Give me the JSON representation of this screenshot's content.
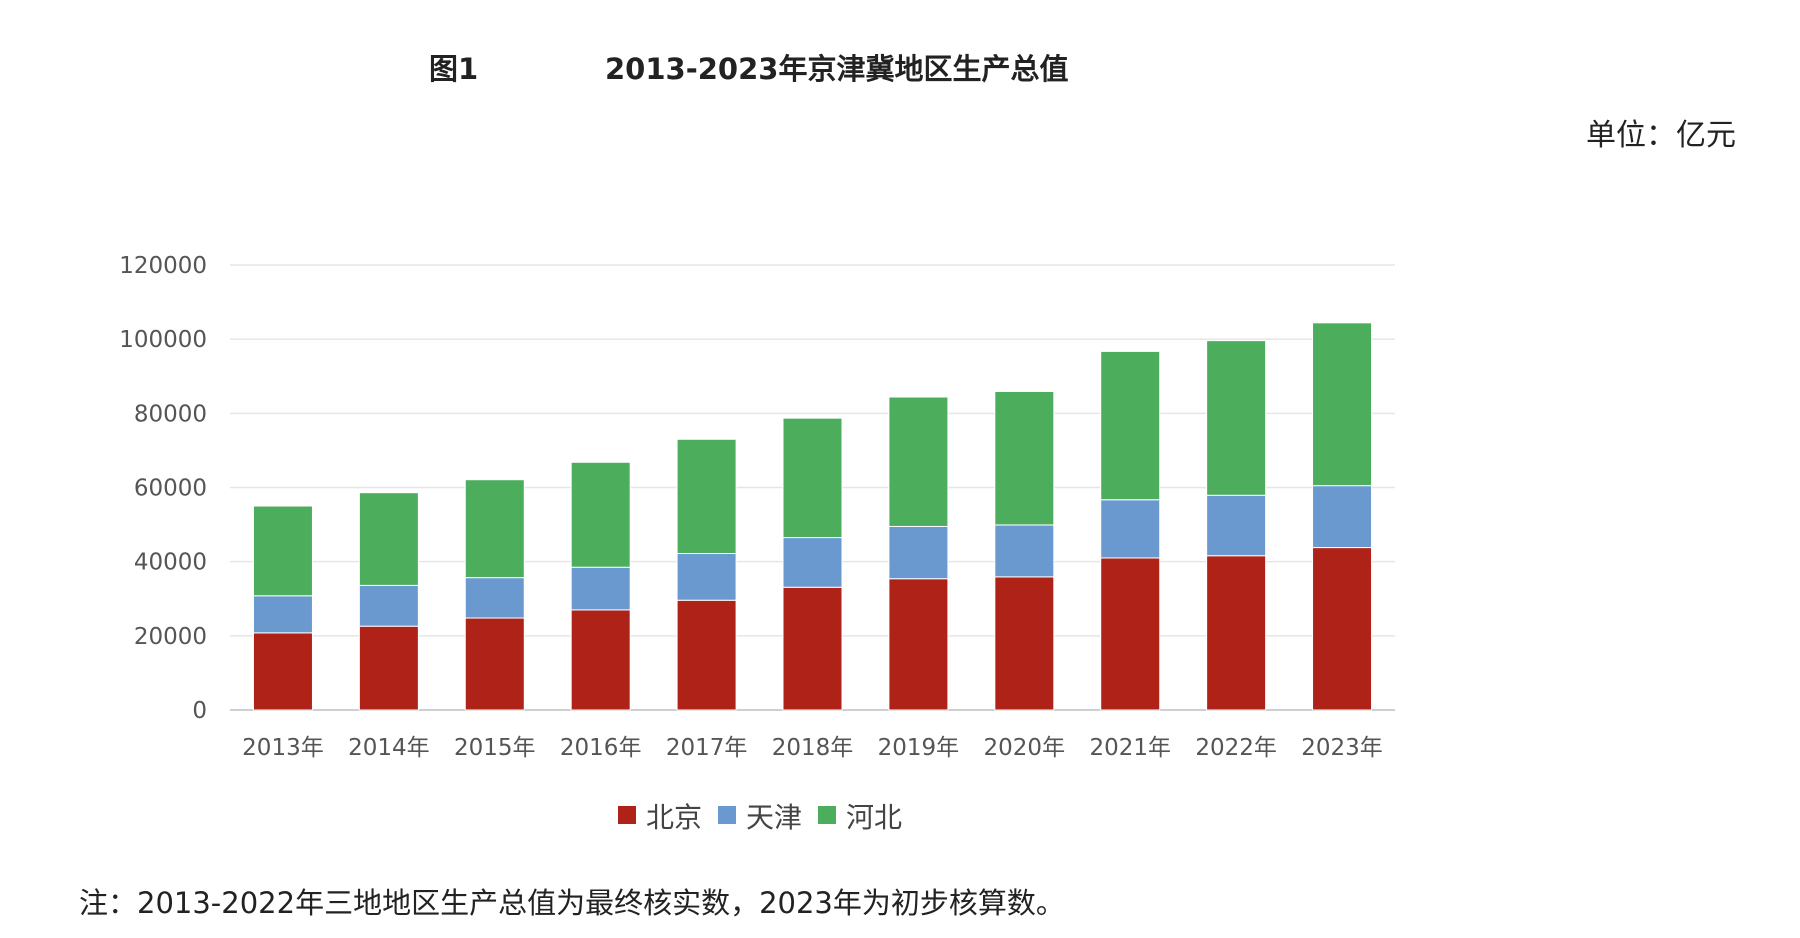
{
  "header": {
    "figure_label": "图1",
    "title": "2013-2023年京津冀地区生产总值",
    "unit": "单位：亿元"
  },
  "note": "注：2013-2022年三地地区生产总值为最终核实数，2023年为初步核算数。",
  "chart_data": {
    "type": "bar",
    "stacked": true,
    "categories": [
      "2013年",
      "2014年",
      "2015年",
      "2016年",
      "2017年",
      "2018年",
      "2019年",
      "2020年",
      "2021年",
      "2022年",
      "2023年"
    ],
    "series": [
      {
        "name": "北京",
        "color": "#ae2218",
        "values": [
          20800,
          22600,
          24800,
          27000,
          29600,
          33100,
          35400,
          35900,
          41000,
          41600,
          43800
        ]
      },
      {
        "name": "天津",
        "color": "#6a99d0",
        "values": [
          10000,
          11000,
          10900,
          11500,
          12600,
          13400,
          14100,
          14000,
          15700,
          16300,
          16700
        ]
      },
      {
        "name": "河北",
        "color": "#4cad5c",
        "values": [
          24200,
          25000,
          26400,
          28300,
          30800,
          32200,
          34900,
          36000,
          40000,
          41700,
          43900
        ]
      }
    ],
    "ylim": [
      0,
      120000
    ],
    "yticks": [
      "0",
      "20000",
      "40000",
      "60000",
      "80000",
      "100000",
      "120000"
    ],
    "grid": true,
    "legend_position": "bottom"
  }
}
